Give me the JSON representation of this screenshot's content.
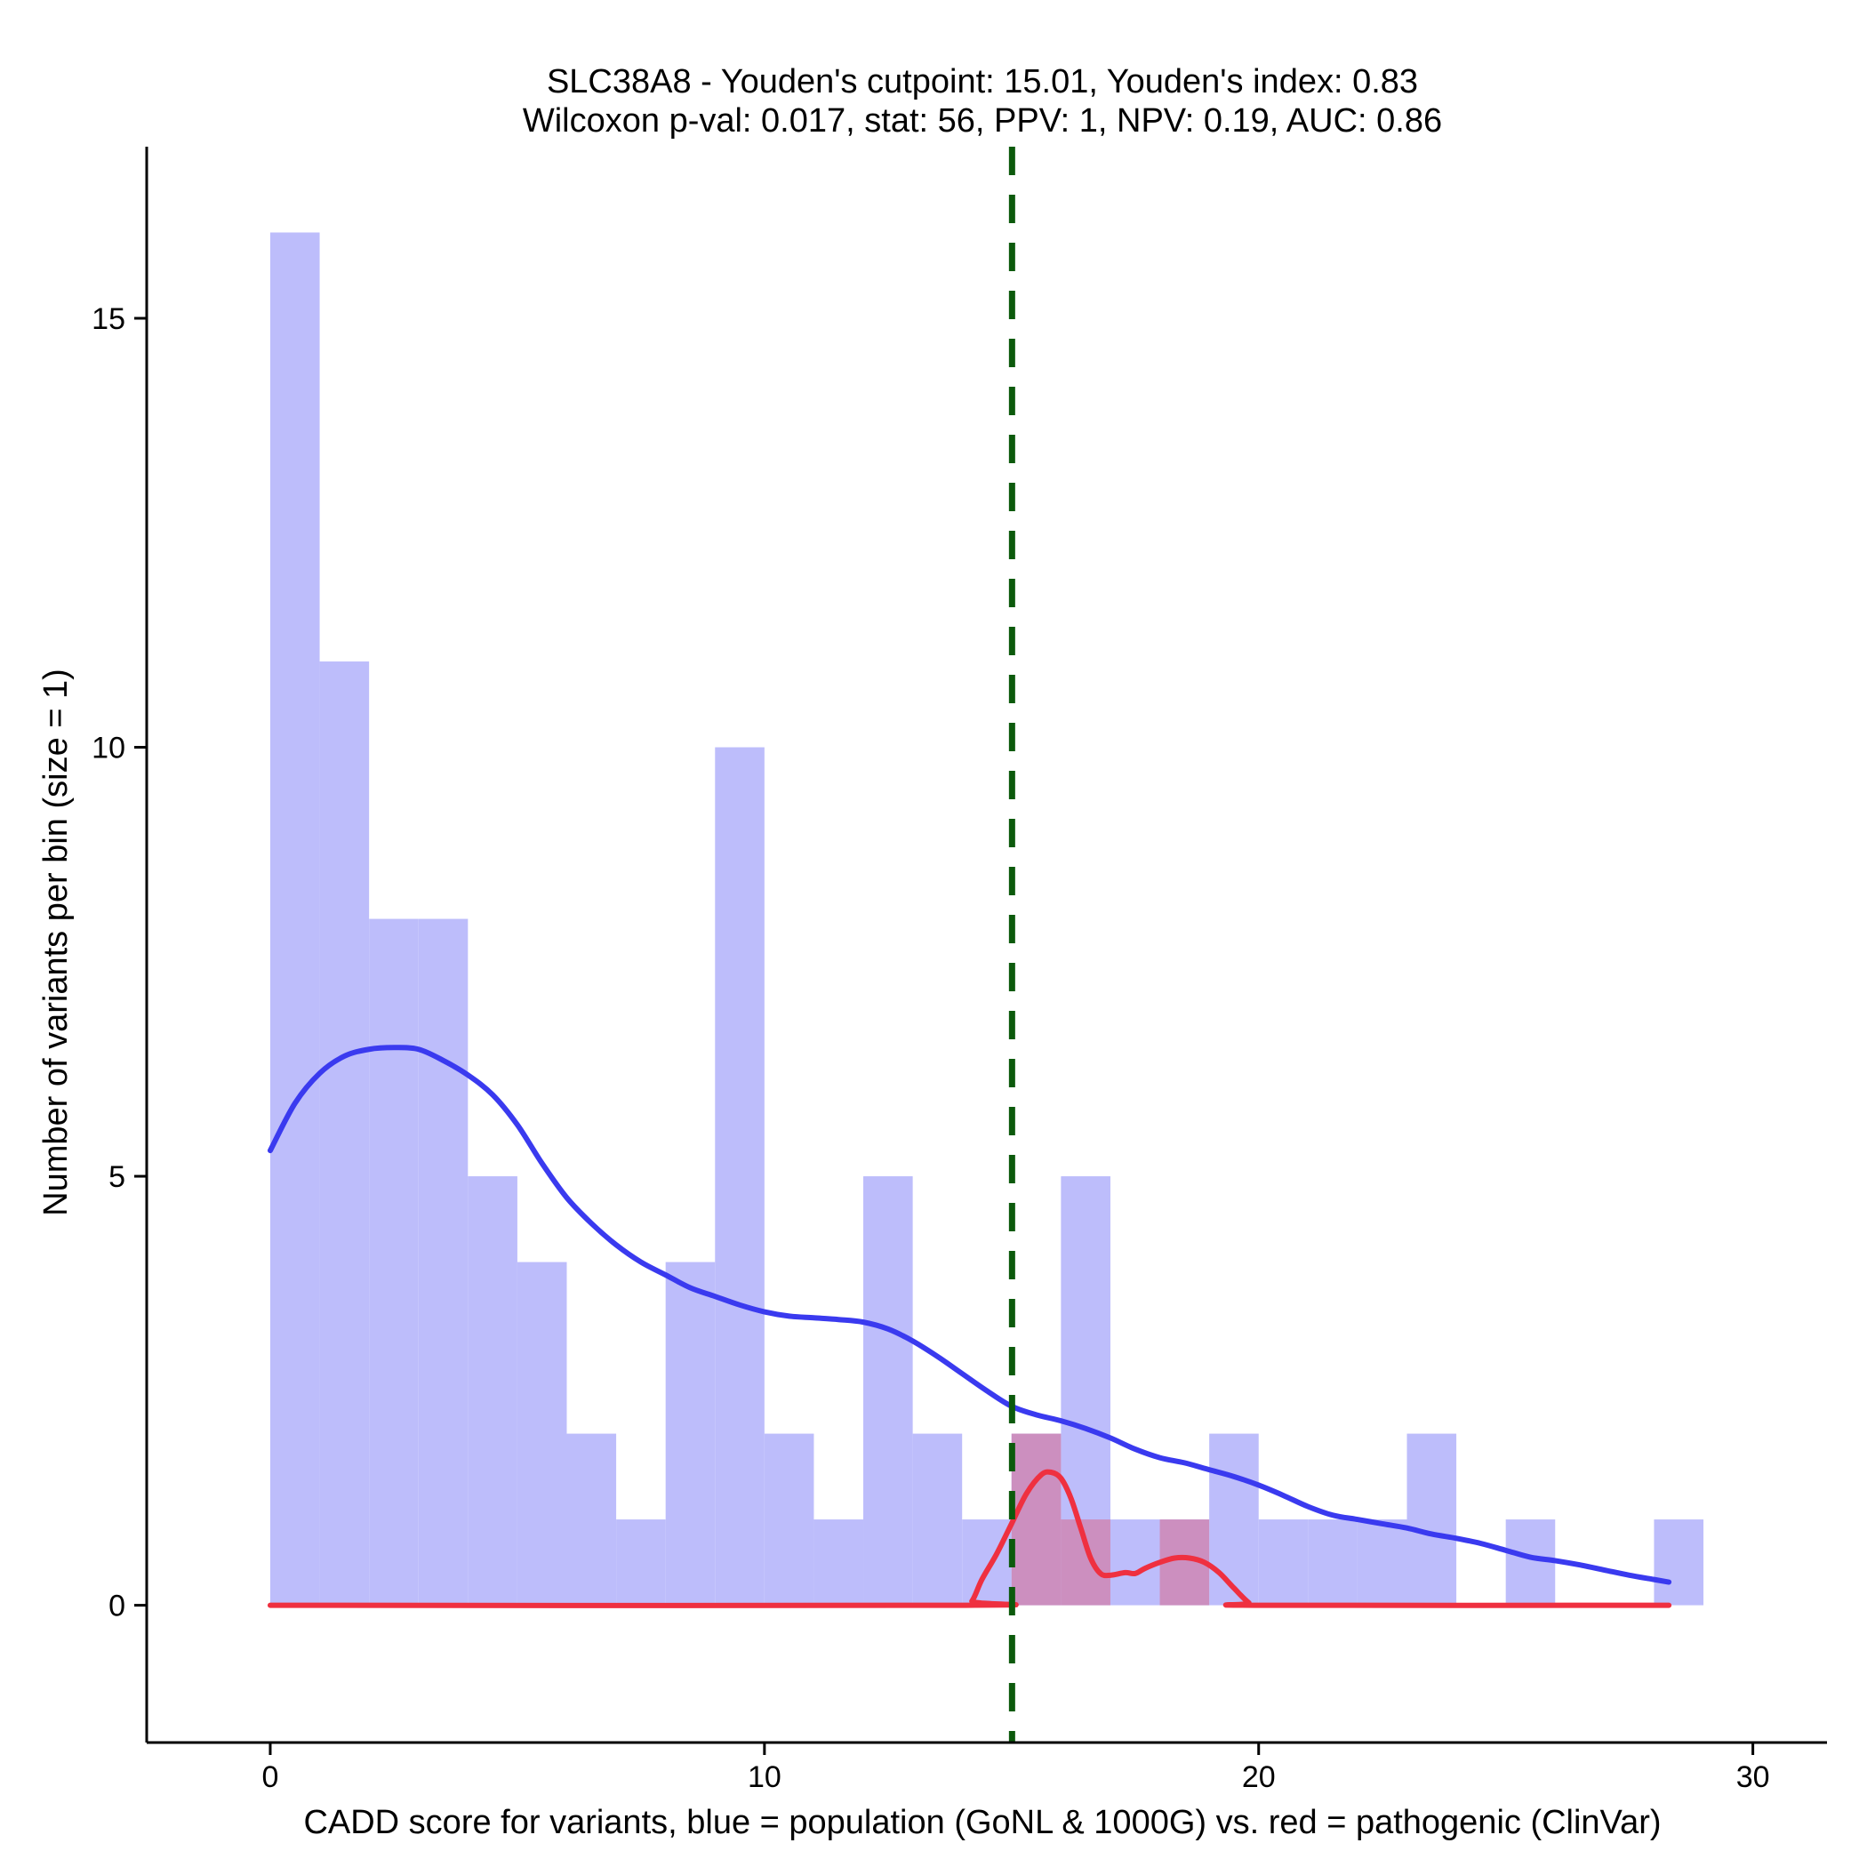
{
  "chart_data": {
    "type": "bar",
    "title": "SLC38A8 - Youden's cutpoint: 15.01, Youden's index: 0.83",
    "subtitle": "Wilcoxon p-val: 0.017, stat: 56, PPV: 1, NPV: 0.19, AUC: 0.86",
    "xlabel": "CADD score for variants, blue = population (GoNL & 1000G) vs. red = pathogenic (ClinVar)",
    "ylabel": "Number of variants per bin (size = 1)",
    "xlim": [
      -2.5,
      31.5
    ],
    "ylim": [
      -1.6,
      17.0
    ],
    "x_ticks": [
      0,
      10,
      20,
      30
    ],
    "x_tick_labels": [
      "0",
      "10",
      "20",
      "30"
    ],
    "y_ticks": [
      0,
      5,
      10,
      15
    ],
    "y_tick_labels": [
      "0",
      "5",
      "10",
      "15"
    ],
    "bin_size": 1,
    "cutpoint": 15.01,
    "colors": {
      "population_bar": "#bdbdfb",
      "pathogenic_bar": "#cc8fbf",
      "population_density": "#3a3aef",
      "pathogenic_density": "#ef3040",
      "cutpoint_line": "#0c5a0c"
    },
    "series": [
      {
        "name": "population (GoNL & 1000G)",
        "bins": [
          {
            "start": 0,
            "count": 16
          },
          {
            "start": 1,
            "count": 11
          },
          {
            "start": 2,
            "count": 8
          },
          {
            "start": 3,
            "count": 8
          },
          {
            "start": 4,
            "count": 5
          },
          {
            "start": 5,
            "count": 4
          },
          {
            "start": 6,
            "count": 2
          },
          {
            "start": 7,
            "count": 1
          },
          {
            "start": 8,
            "count": 4
          },
          {
            "start": 9,
            "count": 10
          },
          {
            "start": 10,
            "count": 2
          },
          {
            "start": 11,
            "count": 1
          },
          {
            "start": 12,
            "count": 5
          },
          {
            "start": 13,
            "count": 2
          },
          {
            "start": 14,
            "count": 1
          },
          {
            "start": 15,
            "count": 2
          },
          {
            "start": 16,
            "count": 5
          },
          {
            "start": 17,
            "count": 1
          },
          {
            "start": 18,
            "count": 1
          },
          {
            "start": 19,
            "count": 2
          },
          {
            "start": 20,
            "count": 1
          },
          {
            "start": 21,
            "count": 1
          },
          {
            "start": 22,
            "count": 1
          },
          {
            "start": 23,
            "count": 2
          },
          {
            "start": 24,
            "count": 0
          },
          {
            "start": 25,
            "count": 1
          },
          {
            "start": 26,
            "count": 0
          },
          {
            "start": 27,
            "count": 0
          },
          {
            "start": 28,
            "count": 1
          }
        ]
      },
      {
        "name": "pathogenic (ClinVar)",
        "bins": [
          {
            "start": 15,
            "count": 2
          },
          {
            "start": 16,
            "count": 1
          },
          {
            "start": 18,
            "count": 1
          }
        ]
      }
    ],
    "density_curves": [
      {
        "name": "population density",
        "points": [
          [
            0,
            5.3
          ],
          [
            0.5,
            5.85
          ],
          [
            1,
            6.2
          ],
          [
            1.5,
            6.4
          ],
          [
            2,
            6.48
          ],
          [
            2.5,
            6.5
          ],
          [
            3,
            6.48
          ],
          [
            3.5,
            6.35
          ],
          [
            4,
            6.18
          ],
          [
            4.5,
            5.95
          ],
          [
            5,
            5.6
          ],
          [
            5.5,
            5.15
          ],
          [
            6,
            4.75
          ],
          [
            6.5,
            4.45
          ],
          [
            7,
            4.2
          ],
          [
            7.5,
            4.0
          ],
          [
            8,
            3.85
          ],
          [
            8.5,
            3.7
          ],
          [
            9,
            3.6
          ],
          [
            9.5,
            3.5
          ],
          [
            10,
            3.42
          ],
          [
            10.5,
            3.37
          ],
          [
            11,
            3.35
          ],
          [
            11.5,
            3.33
          ],
          [
            12,
            3.3
          ],
          [
            12.5,
            3.22
          ],
          [
            13,
            3.08
          ],
          [
            13.5,
            2.9
          ],
          [
            14,
            2.7
          ],
          [
            14.5,
            2.5
          ],
          [
            15,
            2.32
          ],
          [
            15.5,
            2.22
          ],
          [
            16,
            2.15
          ],
          [
            16.5,
            2.06
          ],
          [
            17,
            1.95
          ],
          [
            17.5,
            1.82
          ],
          [
            18,
            1.72
          ],
          [
            18.5,
            1.66
          ],
          [
            19,
            1.58
          ],
          [
            19.5,
            1.5
          ],
          [
            20,
            1.4
          ],
          [
            20.5,
            1.28
          ],
          [
            21,
            1.15
          ],
          [
            21.5,
            1.05
          ],
          [
            22,
            1.0
          ],
          [
            22.5,
            0.95
          ],
          [
            23,
            0.9
          ],
          [
            23.5,
            0.83
          ],
          [
            24,
            0.78
          ],
          [
            24.5,
            0.72
          ],
          [
            25,
            0.64
          ],
          [
            25.5,
            0.56
          ],
          [
            26,
            0.52
          ],
          [
            26.5,
            0.47
          ],
          [
            27,
            0.41
          ],
          [
            27.5,
            0.35
          ],
          [
            28,
            0.3
          ],
          [
            28.3,
            0.27
          ]
        ]
      },
      {
        "name": "pathogenic density",
        "points": [
          [
            0,
            0
          ],
          [
            14,
            0
          ],
          [
            14.2,
            0.05
          ],
          [
            14.4,
            0.3
          ],
          [
            14.7,
            0.6
          ],
          [
            15,
            0.95
          ],
          [
            15.3,
            1.3
          ],
          [
            15.6,
            1.52
          ],
          [
            15.8,
            1.55
          ],
          [
            16,
            1.48
          ],
          [
            16.2,
            1.25
          ],
          [
            16.4,
            0.9
          ],
          [
            16.6,
            0.55
          ],
          [
            16.8,
            0.37
          ],
          [
            17,
            0.35
          ],
          [
            17.3,
            0.38
          ],
          [
            17.5,
            0.37
          ],
          [
            17.7,
            0.43
          ],
          [
            18,
            0.5
          ],
          [
            18.3,
            0.55
          ],
          [
            18.6,
            0.55
          ],
          [
            18.9,
            0.5
          ],
          [
            19.2,
            0.38
          ],
          [
            19.5,
            0.2
          ],
          [
            19.8,
            0.03
          ],
          [
            20,
            0
          ],
          [
            28.3,
            0
          ]
        ]
      }
    ]
  }
}
